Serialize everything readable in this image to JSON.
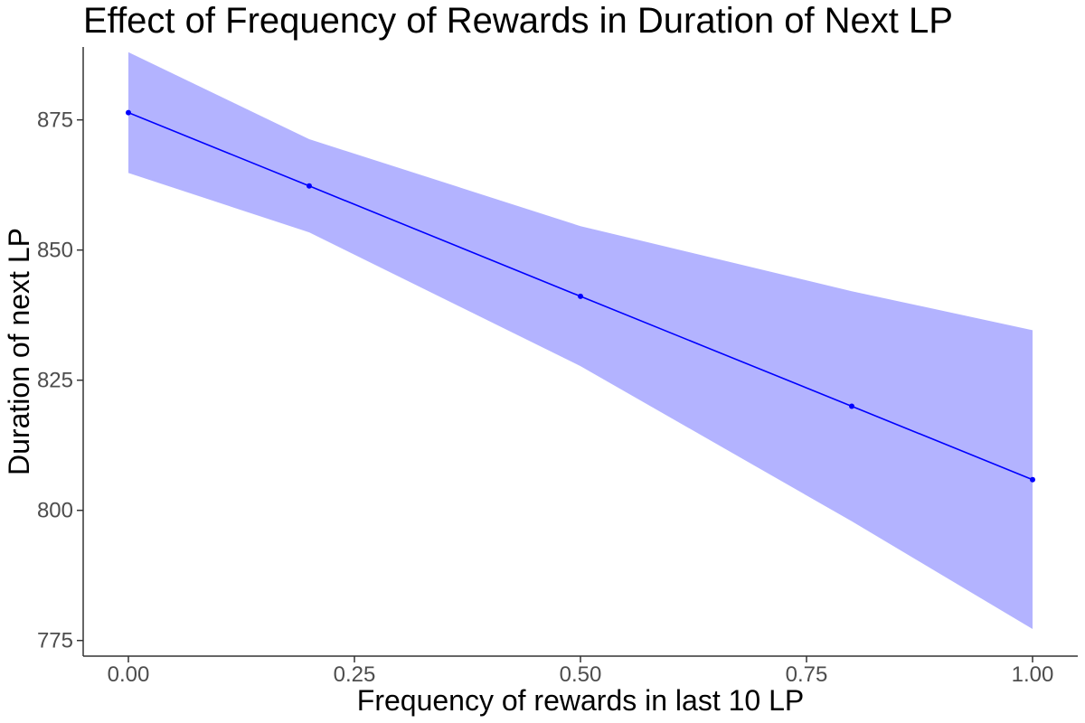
{
  "chart_data": {
    "type": "line",
    "title": "Effect of Frequency of Rewards in Duration of Next LP",
    "xlabel": "Frequency of rewards in last 10 LP",
    "ylabel": "Duration of next LP",
    "xlim": [
      -0.05,
      1.05
    ],
    "ylim": [
      772,
      889
    ],
    "x_ticks": [
      0.0,
      0.25,
      0.5,
      0.75,
      1.0
    ],
    "x_tick_labels": [
      "0.00",
      "0.25",
      "0.50",
      "0.75",
      "1.00"
    ],
    "y_ticks": [
      775,
      800,
      825,
      850,
      875
    ],
    "y_tick_labels": [
      "775",
      "800",
      "825",
      "850",
      "875"
    ],
    "grid": false,
    "legend": "none",
    "series": [
      {
        "x": [
          0.0,
          0.2,
          0.5,
          0.8,
          1.0
        ],
        "y": [
          876.4,
          862.3,
          841.1,
          820.0,
          805.9
        ],
        "color": "#0000ff"
      }
    ],
    "ribbon": {
      "x": [
        0.0,
        0.2,
        0.5,
        0.8,
        1.0
      ],
      "lower": [
        864.8,
        853.4,
        827.7,
        797.9,
        777.2
      ],
      "upper": [
        888.0,
        871.3,
        854.6,
        842.1,
        834.6
      ],
      "color": "#b3b3ff"
    }
  }
}
